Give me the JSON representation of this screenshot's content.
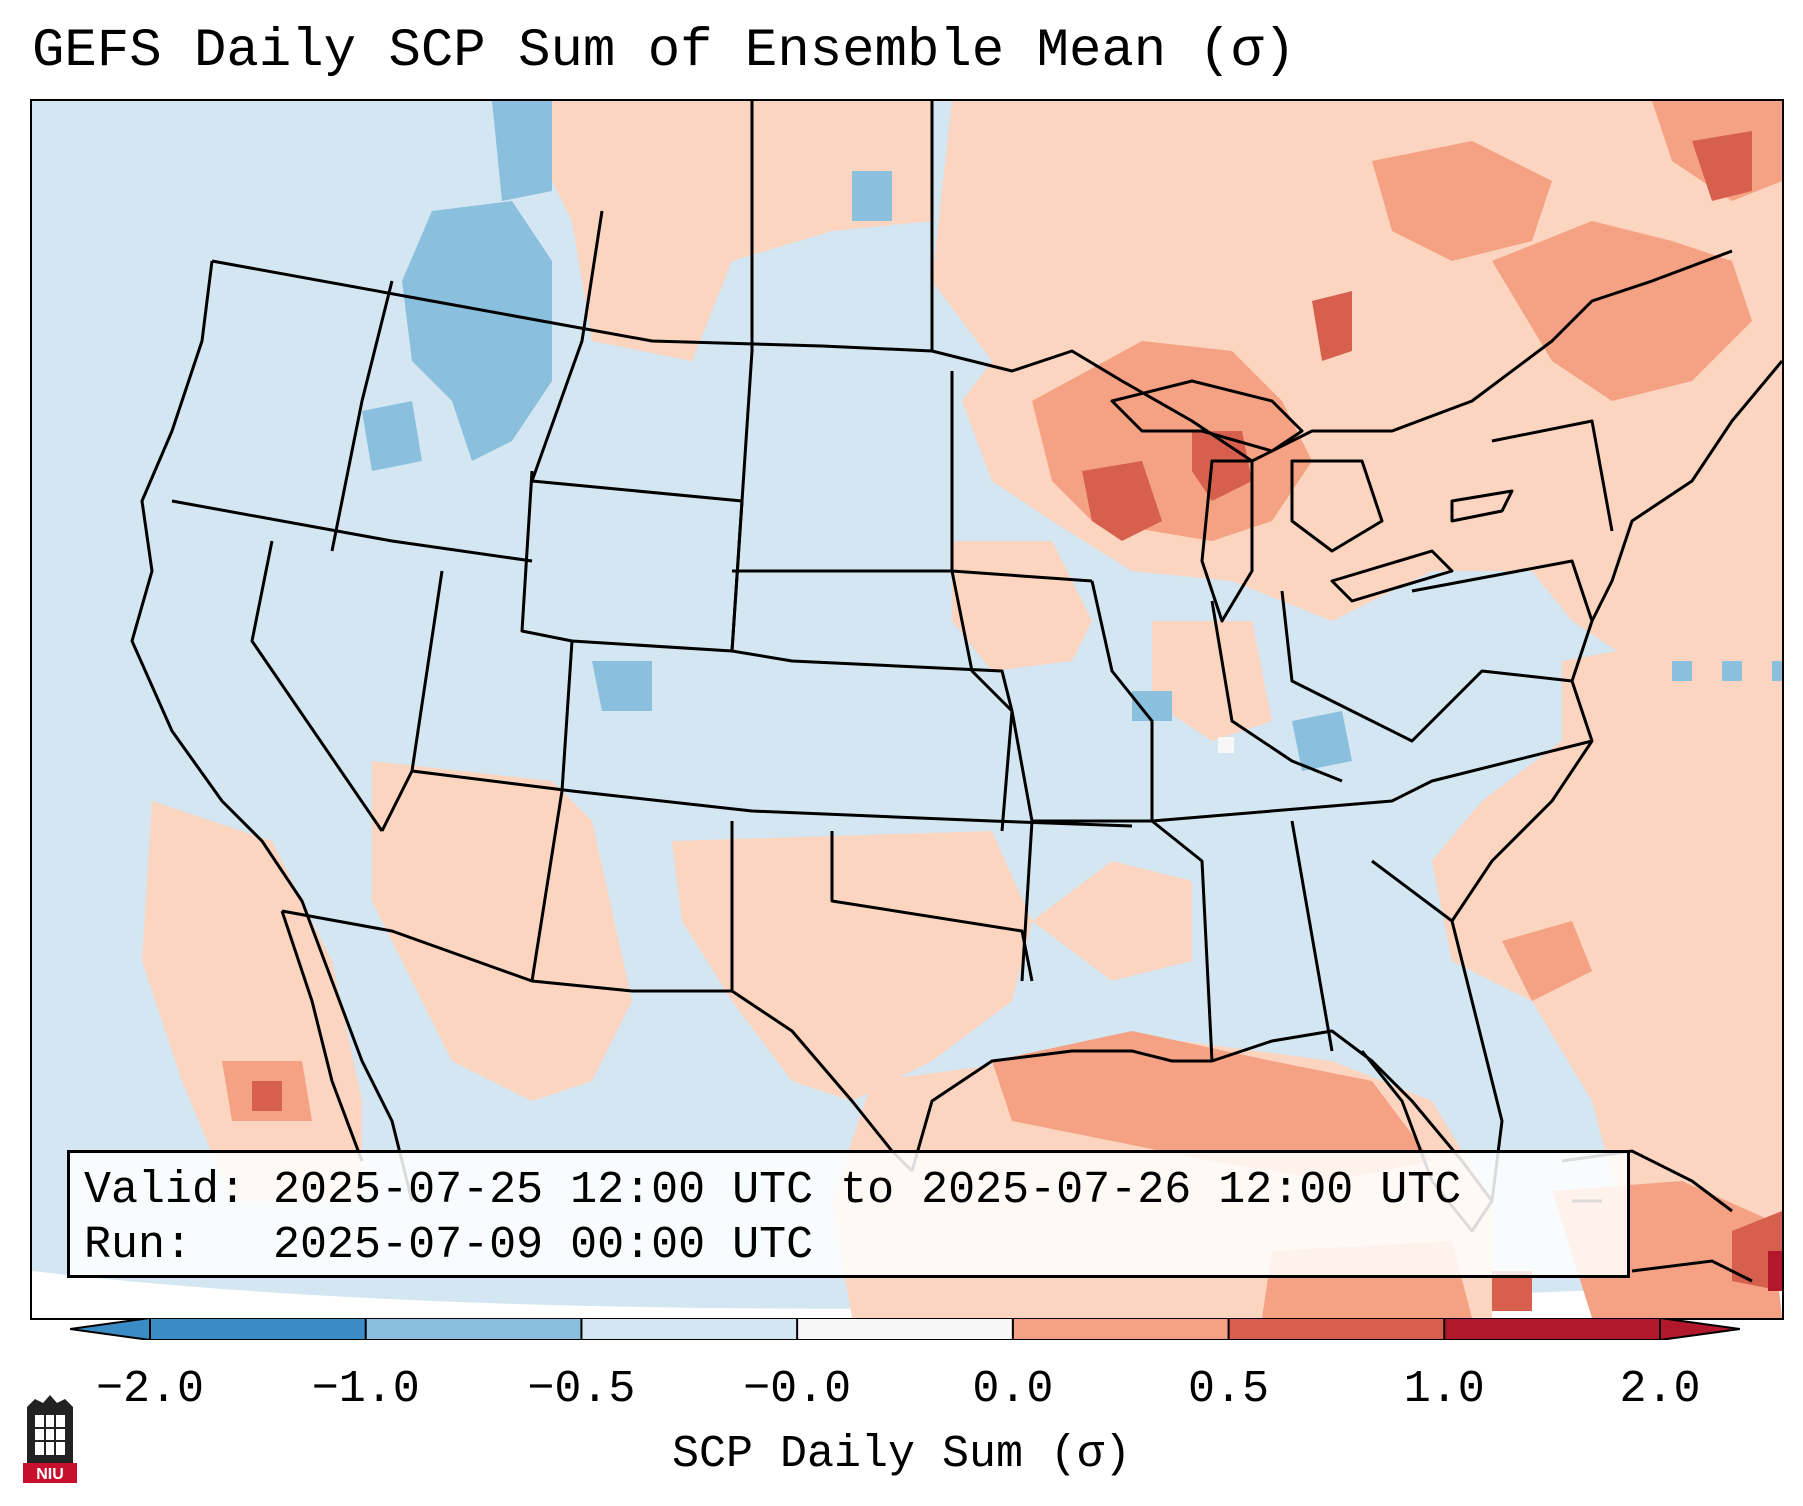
{
  "title": "GEFS Daily SCP Sum of Ensemble Mean (σ)",
  "info": {
    "valid_label": "Valid:",
    "valid_value": "2025-07-25 12:00 UTC to 2025-07-26 12:00 UTC",
    "run_label": "Run:",
    "run_value": "2025-07-09 00:00 UTC"
  },
  "colorbar": {
    "label": "SCP Daily Sum (σ)",
    "ticks": [
      "−2.0",
      "−1.0",
      "−0.5",
      "−0.0",
      "0.0",
      "0.5",
      "1.0",
      "2.0"
    ],
    "colors": [
      "#3a8cc4",
      "#8ac0dd",
      "#d3e6f1",
      "#f7f7f7",
      "#fcd5c0",
      "#f4a283",
      "#d6604d",
      "#b2182b"
    ]
  },
  "logo": {
    "text": "NIU"
  }
}
